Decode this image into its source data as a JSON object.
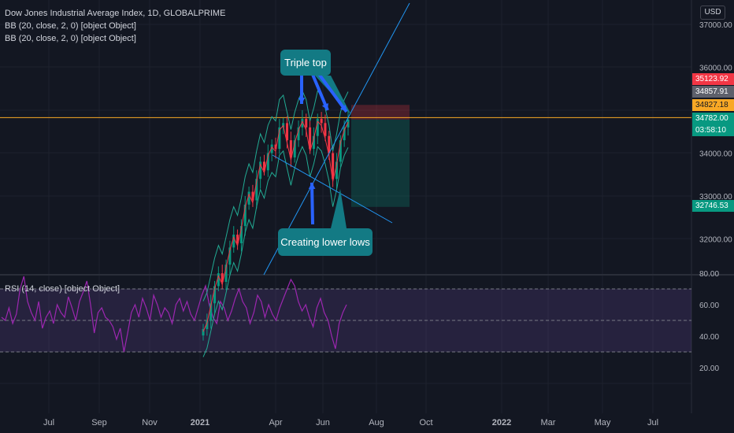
{
  "header": {
    "title": "Dow Jones Industrial Average Index, 1D, GLOBALPRIME",
    "indicators": [
      "BB (20, close, 2, 0) [object Object]",
      "BB (20, close, 2, 0) [object Object]"
    ],
    "currency": "USD"
  },
  "rsi_panel": {
    "label": "RSI (14, close) [object Object]"
  },
  "annotations": {
    "triple_top": "Triple top",
    "lower_lows": "Creating lower lows"
  },
  "price_tags": [
    {
      "text": "35123.92",
      "color": "#f23645"
    },
    {
      "text": "34857.91",
      "color": "#5d606b"
    },
    {
      "text": "34827.18",
      "color": "#f9a825",
      "text_color": "#131722"
    },
    {
      "text": "34782.00",
      "color": "#089981"
    },
    {
      "text": "03:58:10",
      "color": "#089981"
    },
    {
      "text": "32746.53",
      "color": "#089981"
    }
  ],
  "colors": {
    "background": "#131722",
    "bollinger": "#22ab94",
    "candle_up": "#089981",
    "candle_down": "#f23645",
    "rsi_line": "#9c27b0",
    "rsi_band": "#7e57c2",
    "trendline": "#2196f3",
    "price_line": "#f9a825"
  },
  "chart_data": [
    {
      "type": "candlestick",
      "title": "Dow Jones Industrial Average Index, 1D, GLOBALPRIME",
      "y_ticks": [
        "37000.00",
        "36000.00",
        "34000.00",
        "33000.00",
        "32000.00"
      ],
      "x_ticks": [
        "Jul",
        "Sep",
        "Nov",
        "2021",
        "Apr",
        "Jun",
        "Aug",
        "Oct",
        "2022",
        "Mar",
        "May",
        "Jul"
      ],
      "approx_closes": [
        29900,
        30100,
        30500,
        30900,
        31200,
        31000,
        31400,
        31800,
        32100,
        31900,
        32300,
        32800,
        33100,
        32900,
        33400,
        33800,
        33600,
        34000,
        34200,
        34100,
        34600,
        34700,
        34300,
        33900,
        34300,
        34600,
        34800,
        34600,
        34100,
        34400,
        34800,
        34700,
        34400,
        34000,
        33400,
        33800,
        34300,
        34600,
        34782
      ],
      "markers": {
        "last_price": 34782.0,
        "stop_level": 35123.92,
        "target_level": 32746.53
      }
    },
    {
      "type": "line",
      "title": "RSI (14, close) [object Object]",
      "y_ticks": [
        "80.00",
        "60.00",
        "40.00",
        "20.00"
      ],
      "bands": [
        70,
        50,
        30
      ],
      "values": [
        52,
        50,
        58,
        48,
        54,
        70,
        78,
        62,
        55,
        50,
        62,
        45,
        52,
        56,
        48,
        60,
        55,
        52,
        65,
        58,
        50,
        62,
        68,
        75,
        60,
        42,
        55,
        58,
        52,
        50,
        46,
        38,
        45,
        30,
        42,
        55,
        60,
        52,
        64,
        58,
        50,
        66,
        60,
        52,
        58,
        55,
        48,
        60,
        64,
        56,
        62,
        54,
        50,
        58,
        66,
        72,
        60,
        52,
        48,
        62,
        58,
        50,
        56,
        64,
        70,
        62,
        58,
        48,
        55,
        66,
        62,
        52,
        60,
        54,
        50,
        58,
        64,
        70,
        76,
        72,
        62,
        56,
        60,
        52,
        46,
        58,
        64,
        55,
        50,
        40,
        32,
        48,
        55,
        60
      ]
    }
  ]
}
